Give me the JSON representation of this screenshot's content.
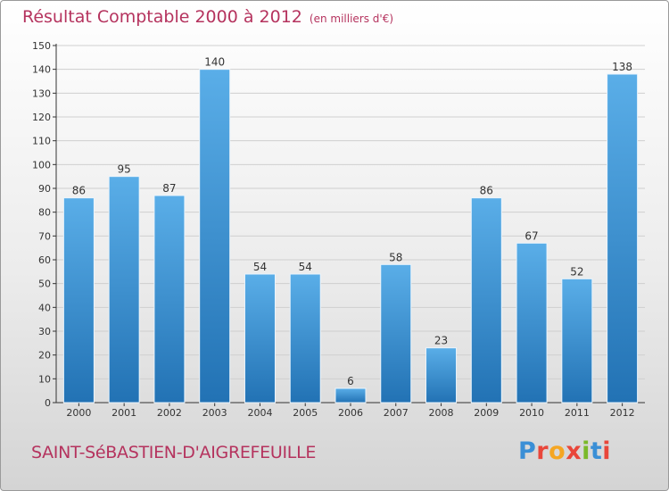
{
  "header": {
    "title": "Résultat Comptable 2000 à 2012",
    "unit": "(en milliers d'€)"
  },
  "footer": {
    "commune": "SAINT-SéBASTIEN-D'AIGREFEUILLE",
    "logo": "Proxiti",
    "logo_colors": [
      "#3a8fd6",
      "#e9463a",
      "#f5a623",
      "#e9463a",
      "#7ab929",
      "#3a8fd6",
      "#e9463a"
    ]
  },
  "colors": {
    "bar_top": "#5aaee8",
    "bar_bottom": "#2272b4",
    "bar_edge": "#eaf4fc",
    "grid": "#cfcfcf",
    "axis": "#333333",
    "text": "#333333",
    "title": "#b5335e"
  },
  "chart_data": {
    "type": "bar",
    "title": "Résultat Comptable 2000 à 2012",
    "subtitle": "(en milliers d'€)",
    "xlabel": "",
    "ylabel": "",
    "categories": [
      "2000",
      "2001",
      "2002",
      "2003",
      "2004",
      "2005",
      "2006",
      "2007",
      "2008",
      "2009",
      "2010",
      "2011",
      "2012"
    ],
    "values": [
      86,
      95,
      87,
      140,
      54,
      54,
      6,
      58,
      23,
      86,
      67,
      52,
      138
    ],
    "ylim": [
      0,
      150
    ],
    "yticks": [
      0,
      10,
      20,
      30,
      40,
      50,
      60,
      70,
      80,
      90,
      100,
      110,
      120,
      130,
      140,
      150
    ],
    "grid": true,
    "legend": "none"
  }
}
